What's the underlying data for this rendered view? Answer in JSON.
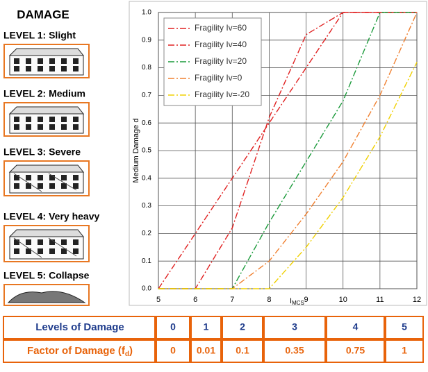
{
  "damage_panel": {
    "title": "DAMAGE",
    "levels": [
      "LEVEL 1: Slight",
      "LEVEL 2: Medium",
      "LEVEL 3: Severe",
      "LEVEL 4: Very heavy",
      "LEVEL 5: Collapse"
    ]
  },
  "chart_data": {
    "type": "line",
    "x_label": "I",
    "x_label_sub": "MCS",
    "y_label": "Medium Damage d",
    "x": [
      5,
      6,
      7,
      8,
      9,
      10,
      11,
      12
    ],
    "series": [
      {
        "name": "Fragility Iv=60",
        "color": "#e02020",
        "values": [
          0,
          0.2,
          0.4,
          0.6,
          0.8,
          1.0,
          1.0,
          1.0
        ]
      },
      {
        "name": "Fragility Iv=40",
        "color": "#e02020",
        "values": [
          0,
          0,
          0.22,
          0.62,
          0.92,
          1.0,
          1.0,
          1.0
        ]
      },
      {
        "name": "Fragility Iv=20",
        "color": "#1a9a3a",
        "values": [
          0,
          0,
          0,
          0.24,
          0.46,
          0.68,
          1.0,
          1.0
        ]
      },
      {
        "name": "Fragility Iv=0",
        "color": "#f08030",
        "values": [
          0,
          0,
          0,
          0.1,
          0.27,
          0.46,
          0.7,
          1.0
        ]
      },
      {
        "name": "Fragility Iv=-20",
        "color": "#f0d000",
        "values": [
          0,
          0,
          0,
          0,
          0.15,
          0.33,
          0.55,
          0.82
        ]
      }
    ],
    "xlim": [
      5,
      12
    ],
    "xticks": [
      5,
      6,
      7,
      8,
      9,
      10,
      11,
      12
    ],
    "ylim": [
      0,
      1
    ],
    "yticks": [
      {
        "value": 0,
        "label": "0.0"
      },
      0.1,
      0.2,
      0.3,
      0.4,
      0.5,
      0.6,
      0.7,
      0.8,
      0.9,
      {
        "value": 1,
        "label": "1.0"
      }
    ],
    "grid": true,
    "legend": "top-left"
  },
  "table": {
    "rows": [
      {
        "label": "Levels of Damage",
        "cells": [
          "0",
          "1",
          "2",
          "3",
          "4",
          "5"
        ]
      },
      {
        "label": "Factor of Damage (f",
        "label_sub": "d",
        "label_end": ")",
        "cells": [
          "0",
          "0.01",
          "0.1",
          "0.35",
          "0.75",
          "1"
        ]
      }
    ]
  }
}
